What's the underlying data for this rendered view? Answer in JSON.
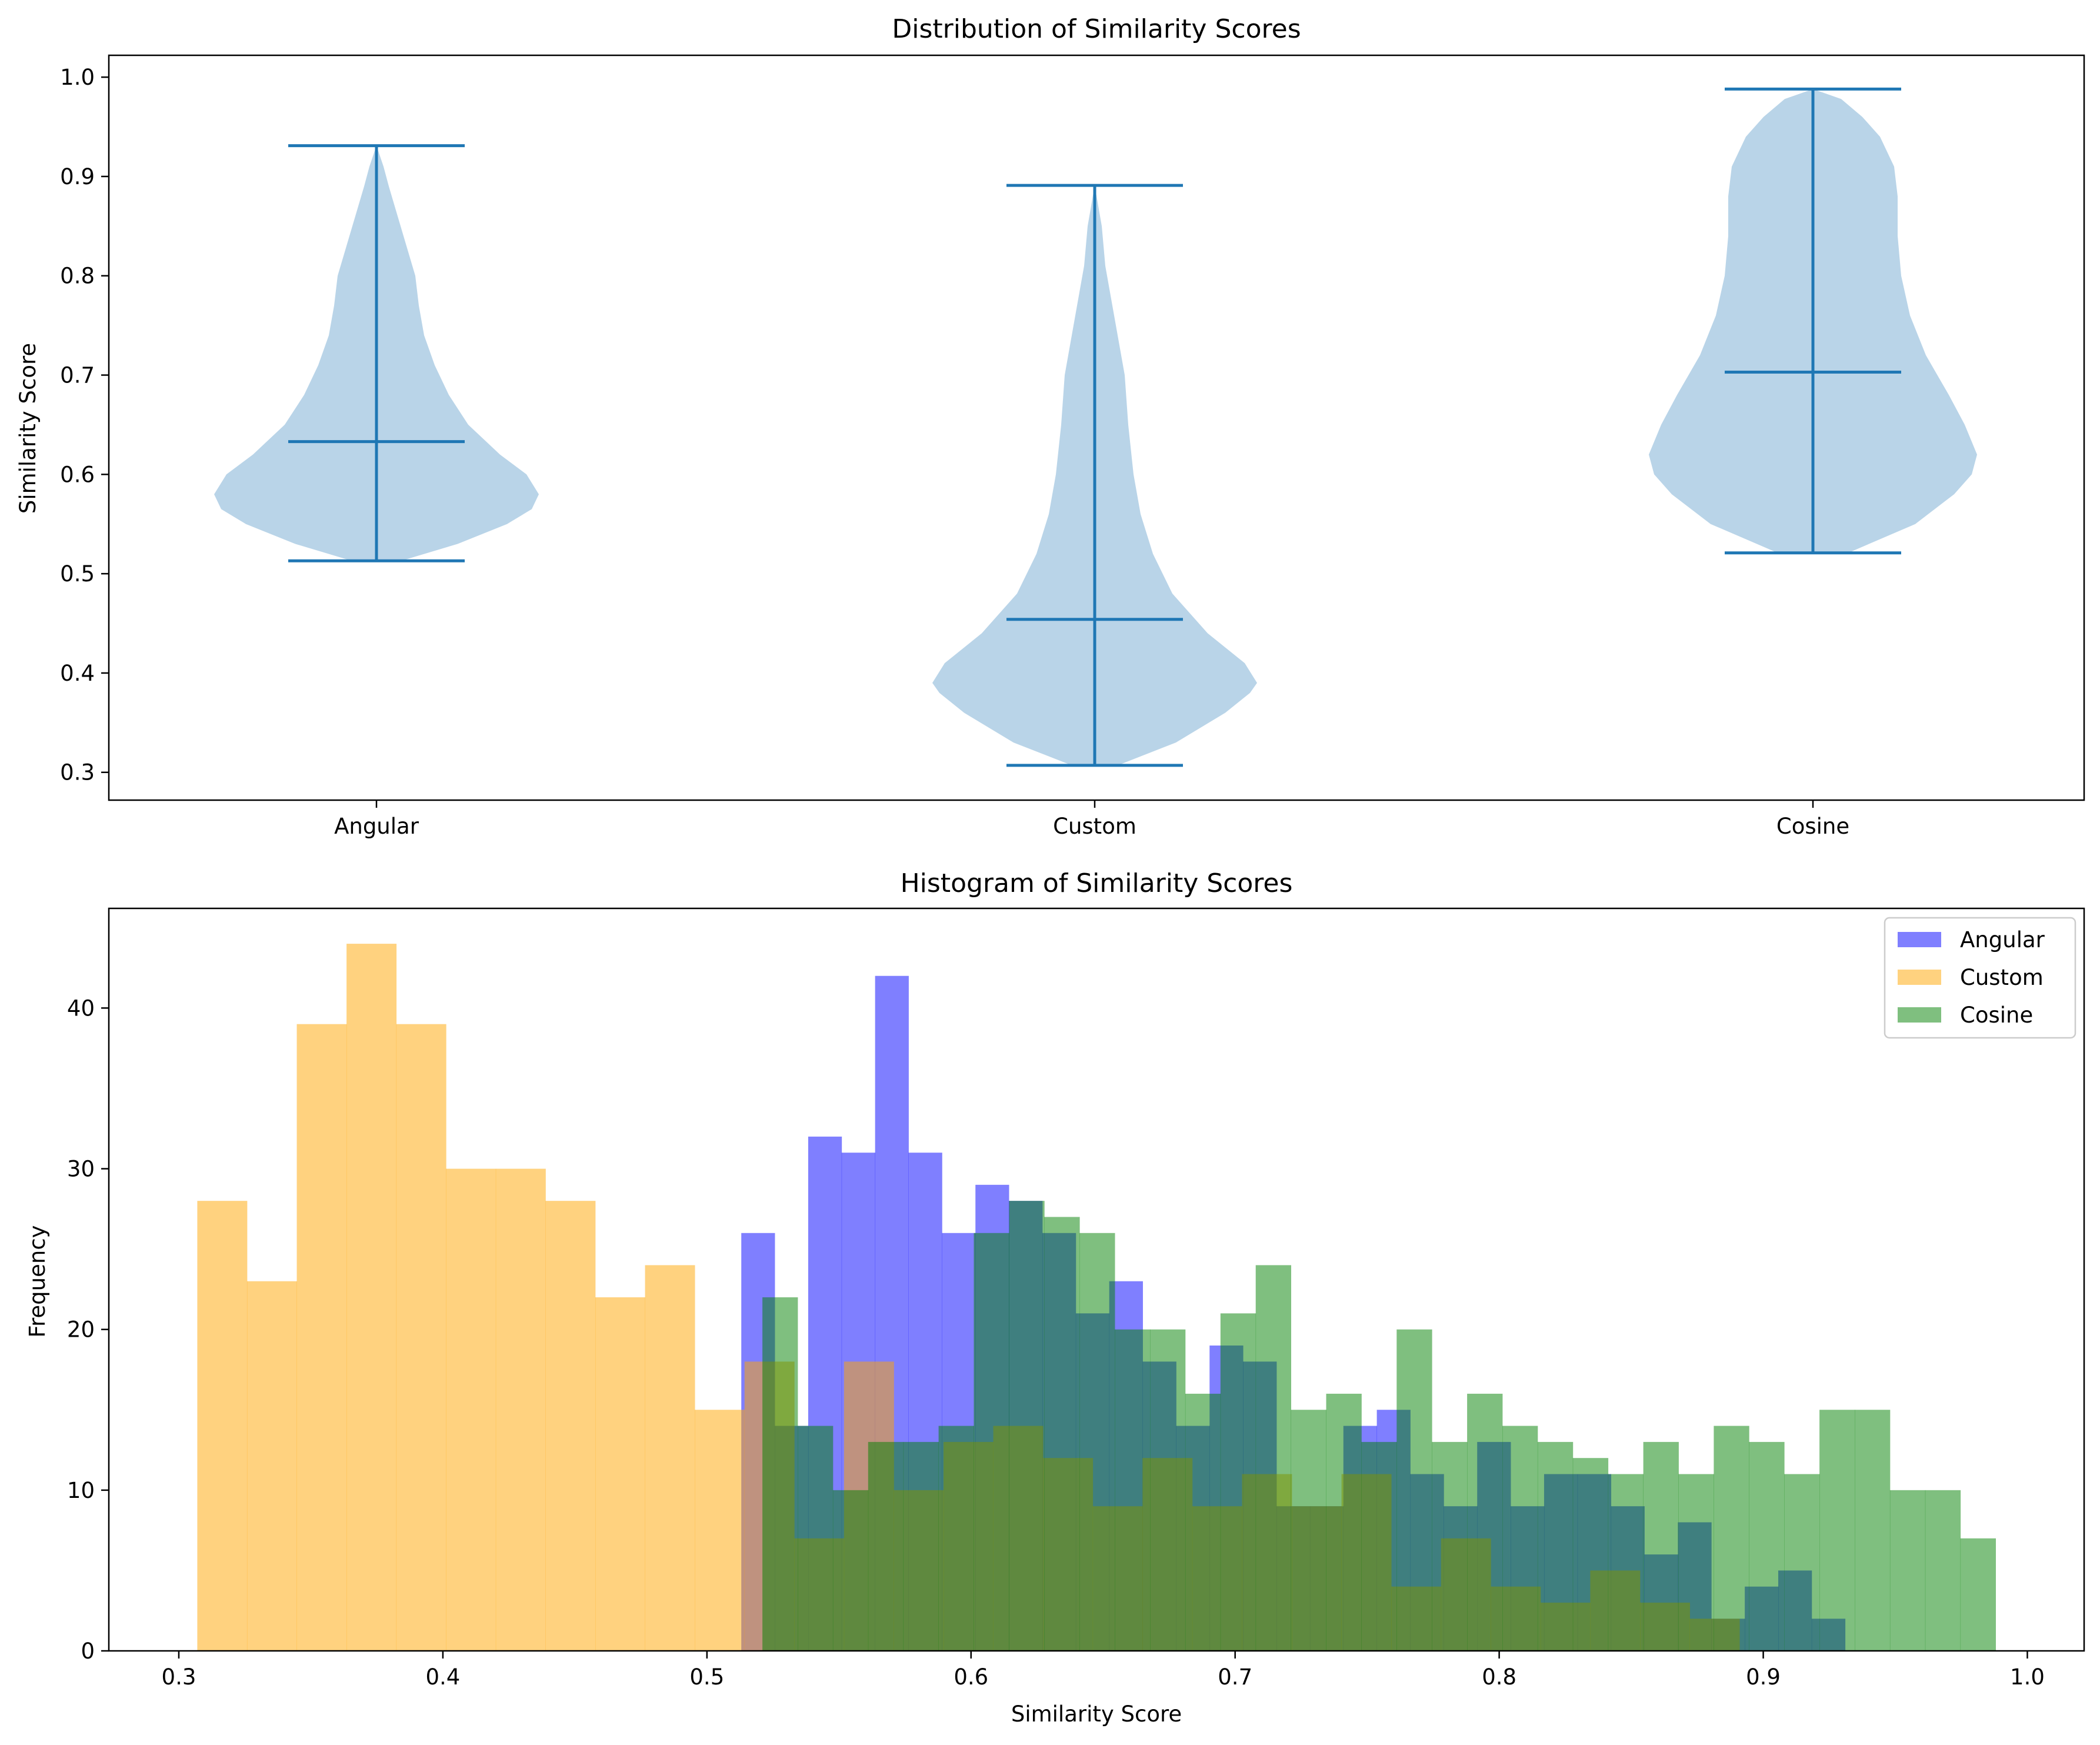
{
  "chart_data": [
    {
      "type": "violin",
      "title": "Distribution of Similarity Scores",
      "xlabel": "",
      "ylabel": "Similarity Score",
      "ylim": [
        0.272,
        1.022
      ],
      "yticks": [
        0.3,
        0.4,
        0.5,
        0.6,
        0.7,
        0.8,
        0.9,
        1.0
      ],
      "ytick_labels": [
        "0.3",
        "0.4",
        "0.5",
        "0.6",
        "0.7",
        "0.8",
        "0.9",
        "1.0"
      ],
      "categories": [
        "Angular",
        "Custom",
        "Cosine"
      ],
      "fill_color": "#b9d4e8",
      "line_color": "#1f77b4",
      "series": [
        {
          "category": "Angular",
          "min": 0.513,
          "mean": 0.633,
          "max": 0.931,
          "density": [
            [
              0.513,
              0.14
            ],
            [
              0.53,
              0.46
            ],
            [
              0.55,
              0.74
            ],
            [
              0.565,
              0.88
            ],
            [
              0.58,
              0.92
            ],
            [
              0.6,
              0.85
            ],
            [
              0.62,
              0.7
            ],
            [
              0.65,
              0.52
            ],
            [
              0.68,
              0.41
            ],
            [
              0.71,
              0.33
            ],
            [
              0.74,
              0.27
            ],
            [
              0.77,
              0.24
            ],
            [
              0.8,
              0.22
            ],
            [
              0.83,
              0.17
            ],
            [
              0.86,
              0.12
            ],
            [
              0.89,
              0.07
            ],
            [
              0.91,
              0.04
            ],
            [
              0.931,
              0.0
            ]
          ]
        },
        {
          "category": "Custom",
          "min": 0.307,
          "mean": 0.454,
          "max": 0.891,
          "density": [
            [
              0.307,
              0.13
            ],
            [
              0.33,
              0.46
            ],
            [
              0.36,
              0.74
            ],
            [
              0.38,
              0.88
            ],
            [
              0.39,
              0.92
            ],
            [
              0.41,
              0.85
            ],
            [
              0.44,
              0.64
            ],
            [
              0.48,
              0.44
            ],
            [
              0.52,
              0.33
            ],
            [
              0.56,
              0.26
            ],
            [
              0.6,
              0.22
            ],
            [
              0.65,
              0.19
            ],
            [
              0.7,
              0.17
            ],
            [
              0.73,
              0.14
            ],
            [
              0.77,
              0.1
            ],
            [
              0.81,
              0.06
            ],
            [
              0.85,
              0.04
            ],
            [
              0.891,
              0.0
            ]
          ]
        },
        {
          "category": "Cosine",
          "min": 0.521,
          "mean": 0.703,
          "max": 0.988,
          "density": [
            [
              0.521,
              0.2
            ],
            [
              0.55,
              0.58
            ],
            [
              0.58,
              0.8
            ],
            [
              0.6,
              0.9
            ],
            [
              0.62,
              0.93
            ],
            [
              0.65,
              0.86
            ],
            [
              0.68,
              0.77
            ],
            [
              0.72,
              0.64
            ],
            [
              0.76,
              0.55
            ],
            [
              0.8,
              0.5
            ],
            [
              0.84,
              0.48
            ],
            [
              0.88,
              0.48
            ],
            [
              0.91,
              0.46
            ],
            [
              0.94,
              0.38
            ],
            [
              0.96,
              0.28
            ],
            [
              0.978,
              0.16
            ],
            [
              0.988,
              0.0
            ]
          ]
        }
      ]
    },
    {
      "type": "histogram",
      "title": "Histogram of Similarity Scores",
      "xlabel": "Similarity Score",
      "ylabel": "Frequency",
      "xlim": [
        0.2735,
        1.0215
      ],
      "ylim": [
        0,
        46.2
      ],
      "xticks": [
        0.3,
        0.4,
        0.5,
        0.6,
        0.7,
        0.8,
        0.9,
        1.0
      ],
      "xtick_labels": [
        "0.3",
        "0.4",
        "0.5",
        "0.6",
        "0.7",
        "0.8",
        "0.9",
        "1.0"
      ],
      "yticks": [
        0,
        10,
        20,
        30,
        40
      ],
      "ytick_labels": [
        "0",
        "10",
        "20",
        "30",
        "40"
      ],
      "legend_position": "top-right",
      "series": [
        {
          "name": "Angular",
          "color": "#0000ff",
          "alpha": 0.5,
          "bin_start": 0.513,
          "bin_end": 0.931,
          "counts": [
            26,
            14,
            32,
            31,
            42,
            31,
            26,
            29,
            28,
            26,
            21,
            23,
            18,
            14,
            19,
            18,
            9,
            9,
            14,
            15,
            11,
            9,
            13,
            9,
            11,
            11,
            9,
            6,
            8,
            2,
            4,
            5,
            2
          ]
        },
        {
          "name": "Custom",
          "color": "#ffa500",
          "alpha": 0.5,
          "bin_start": 0.307,
          "bin_end": 0.891,
          "counts": [
            28,
            23,
            39,
            44,
            39,
            30,
            30,
            28,
            22,
            24,
            15,
            18,
            7,
            18,
            10,
            13,
            14,
            12,
            9,
            12,
            9,
            11,
            9,
            11,
            4,
            7,
            4,
            3,
            5,
            3,
            2
          ]
        },
        {
          "name": "Cosine",
          "color": "#008000",
          "alpha": 0.5,
          "bin_start": 0.521,
          "bin_end": 0.988,
          "counts": [
            22,
            14,
            10,
            13,
            13,
            14,
            26,
            28,
            27,
            26,
            20,
            20,
            16,
            21,
            24,
            15,
            16,
            13,
            20,
            13,
            16,
            14,
            13,
            12,
            11,
            13,
            11,
            14,
            13,
            11,
            15,
            15,
            10,
            10,
            7
          ]
        }
      ]
    }
  ]
}
